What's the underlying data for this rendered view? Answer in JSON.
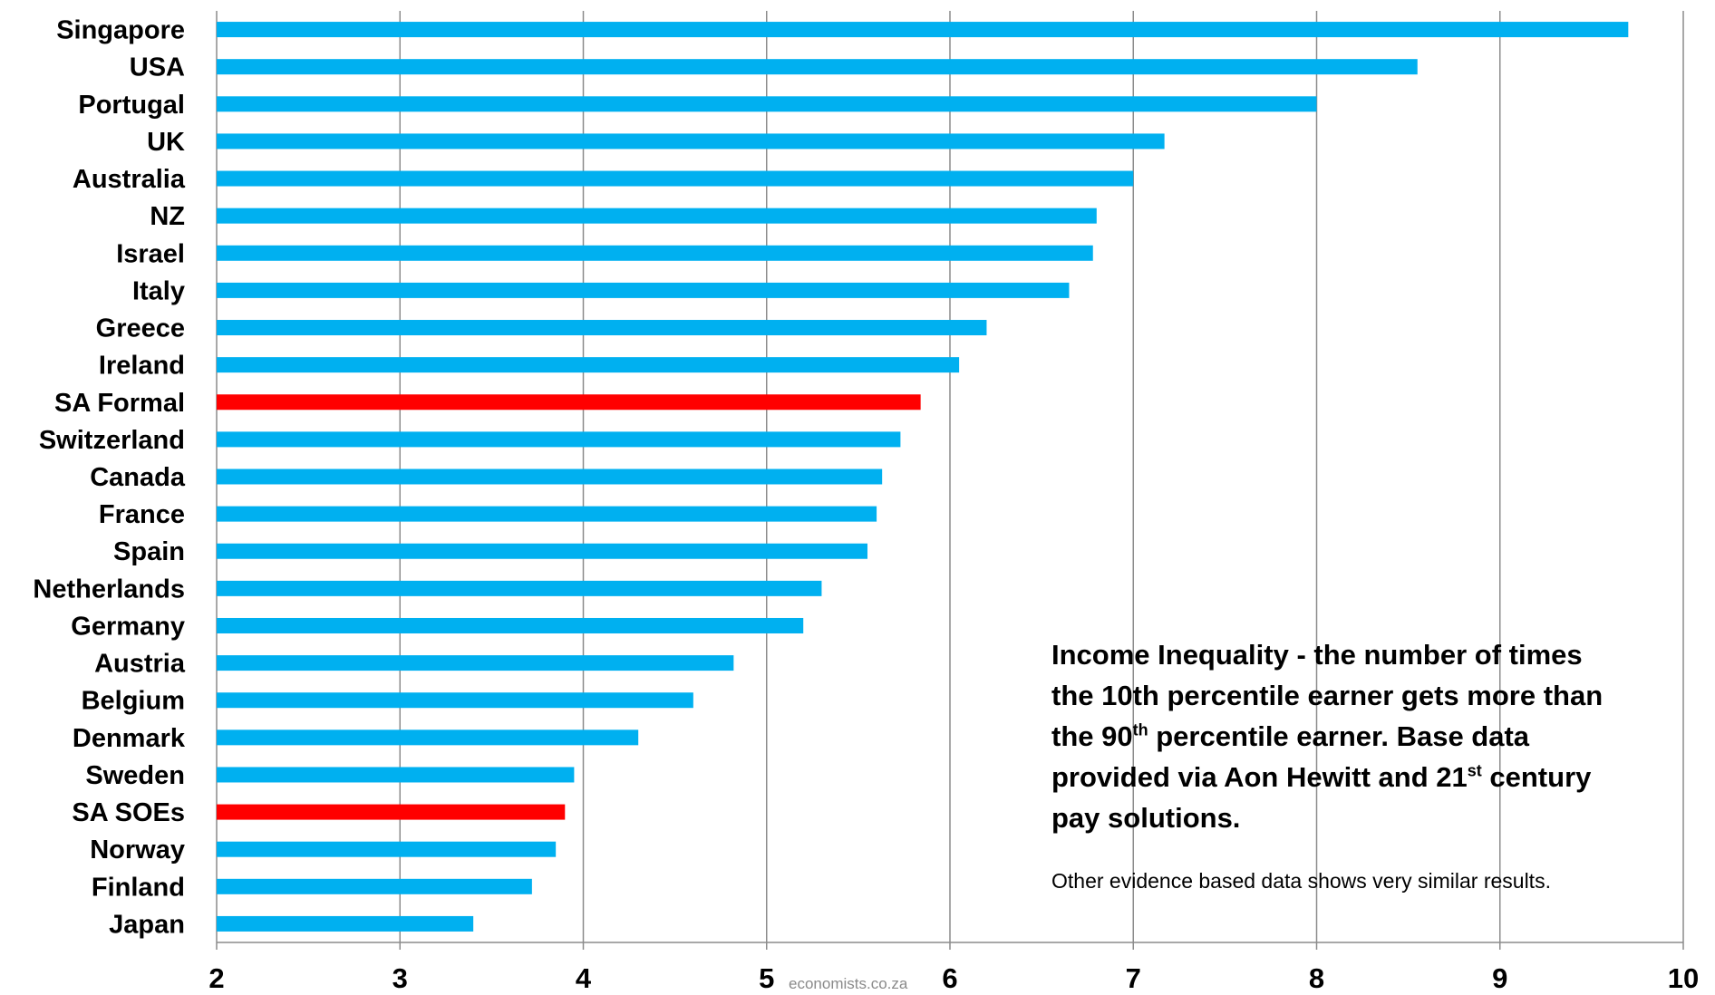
{
  "chart_data": {
    "type": "bar",
    "orientation": "horizontal",
    "categories": [
      "Singapore",
      "USA",
      "Portugal",
      "UK",
      "Australia",
      "NZ",
      "Israel",
      "Italy",
      "Greece",
      "Ireland",
      "SA Formal",
      "Switzerland",
      "Canada",
      "France",
      "Spain",
      "Netherlands",
      "Germany",
      "Austria",
      "Belgium",
      "Denmark",
      "Sweden",
      "SA SOEs",
      "Norway",
      "Finland",
      "Japan"
    ],
    "values": [
      9.7,
      8.55,
      8.0,
      7.17,
      7.0,
      6.8,
      6.78,
      6.65,
      6.2,
      6.05,
      5.84,
      5.73,
      5.63,
      5.6,
      5.55,
      5.3,
      5.2,
      4.82,
      4.6,
      4.3,
      3.95,
      3.9,
      3.85,
      3.72,
      3.4
    ],
    "highlighted": [
      "SA Formal",
      "SA SOEs"
    ],
    "xlim": [
      2,
      10
    ],
    "xticks": [
      "2",
      "3",
      "4",
      "5",
      "6",
      "7",
      "8",
      "9",
      "10"
    ],
    "title": "",
    "xlabel": "",
    "ylabel": "",
    "grid": "vertical",
    "legend": "none",
    "colors": {
      "bar": "#00b0f0",
      "highlight": "#ff0000",
      "grid": "#8c8c8c"
    }
  },
  "annotation": {
    "line1": "Income Inequality - the number of times",
    "line2": "the 10th percentile earner gets more than",
    "line3_a": "the 90",
    "line3_sup": "th",
    "line3_b": " percentile earner. Base data",
    "line4_a": "provided via Aon Hewitt and 21",
    "line4_sup": "st",
    "line4_b": " century",
    "line5": "pay solutions.",
    "sub": "Other evidence based data shows very similar results."
  },
  "credit": "economists.co.za"
}
